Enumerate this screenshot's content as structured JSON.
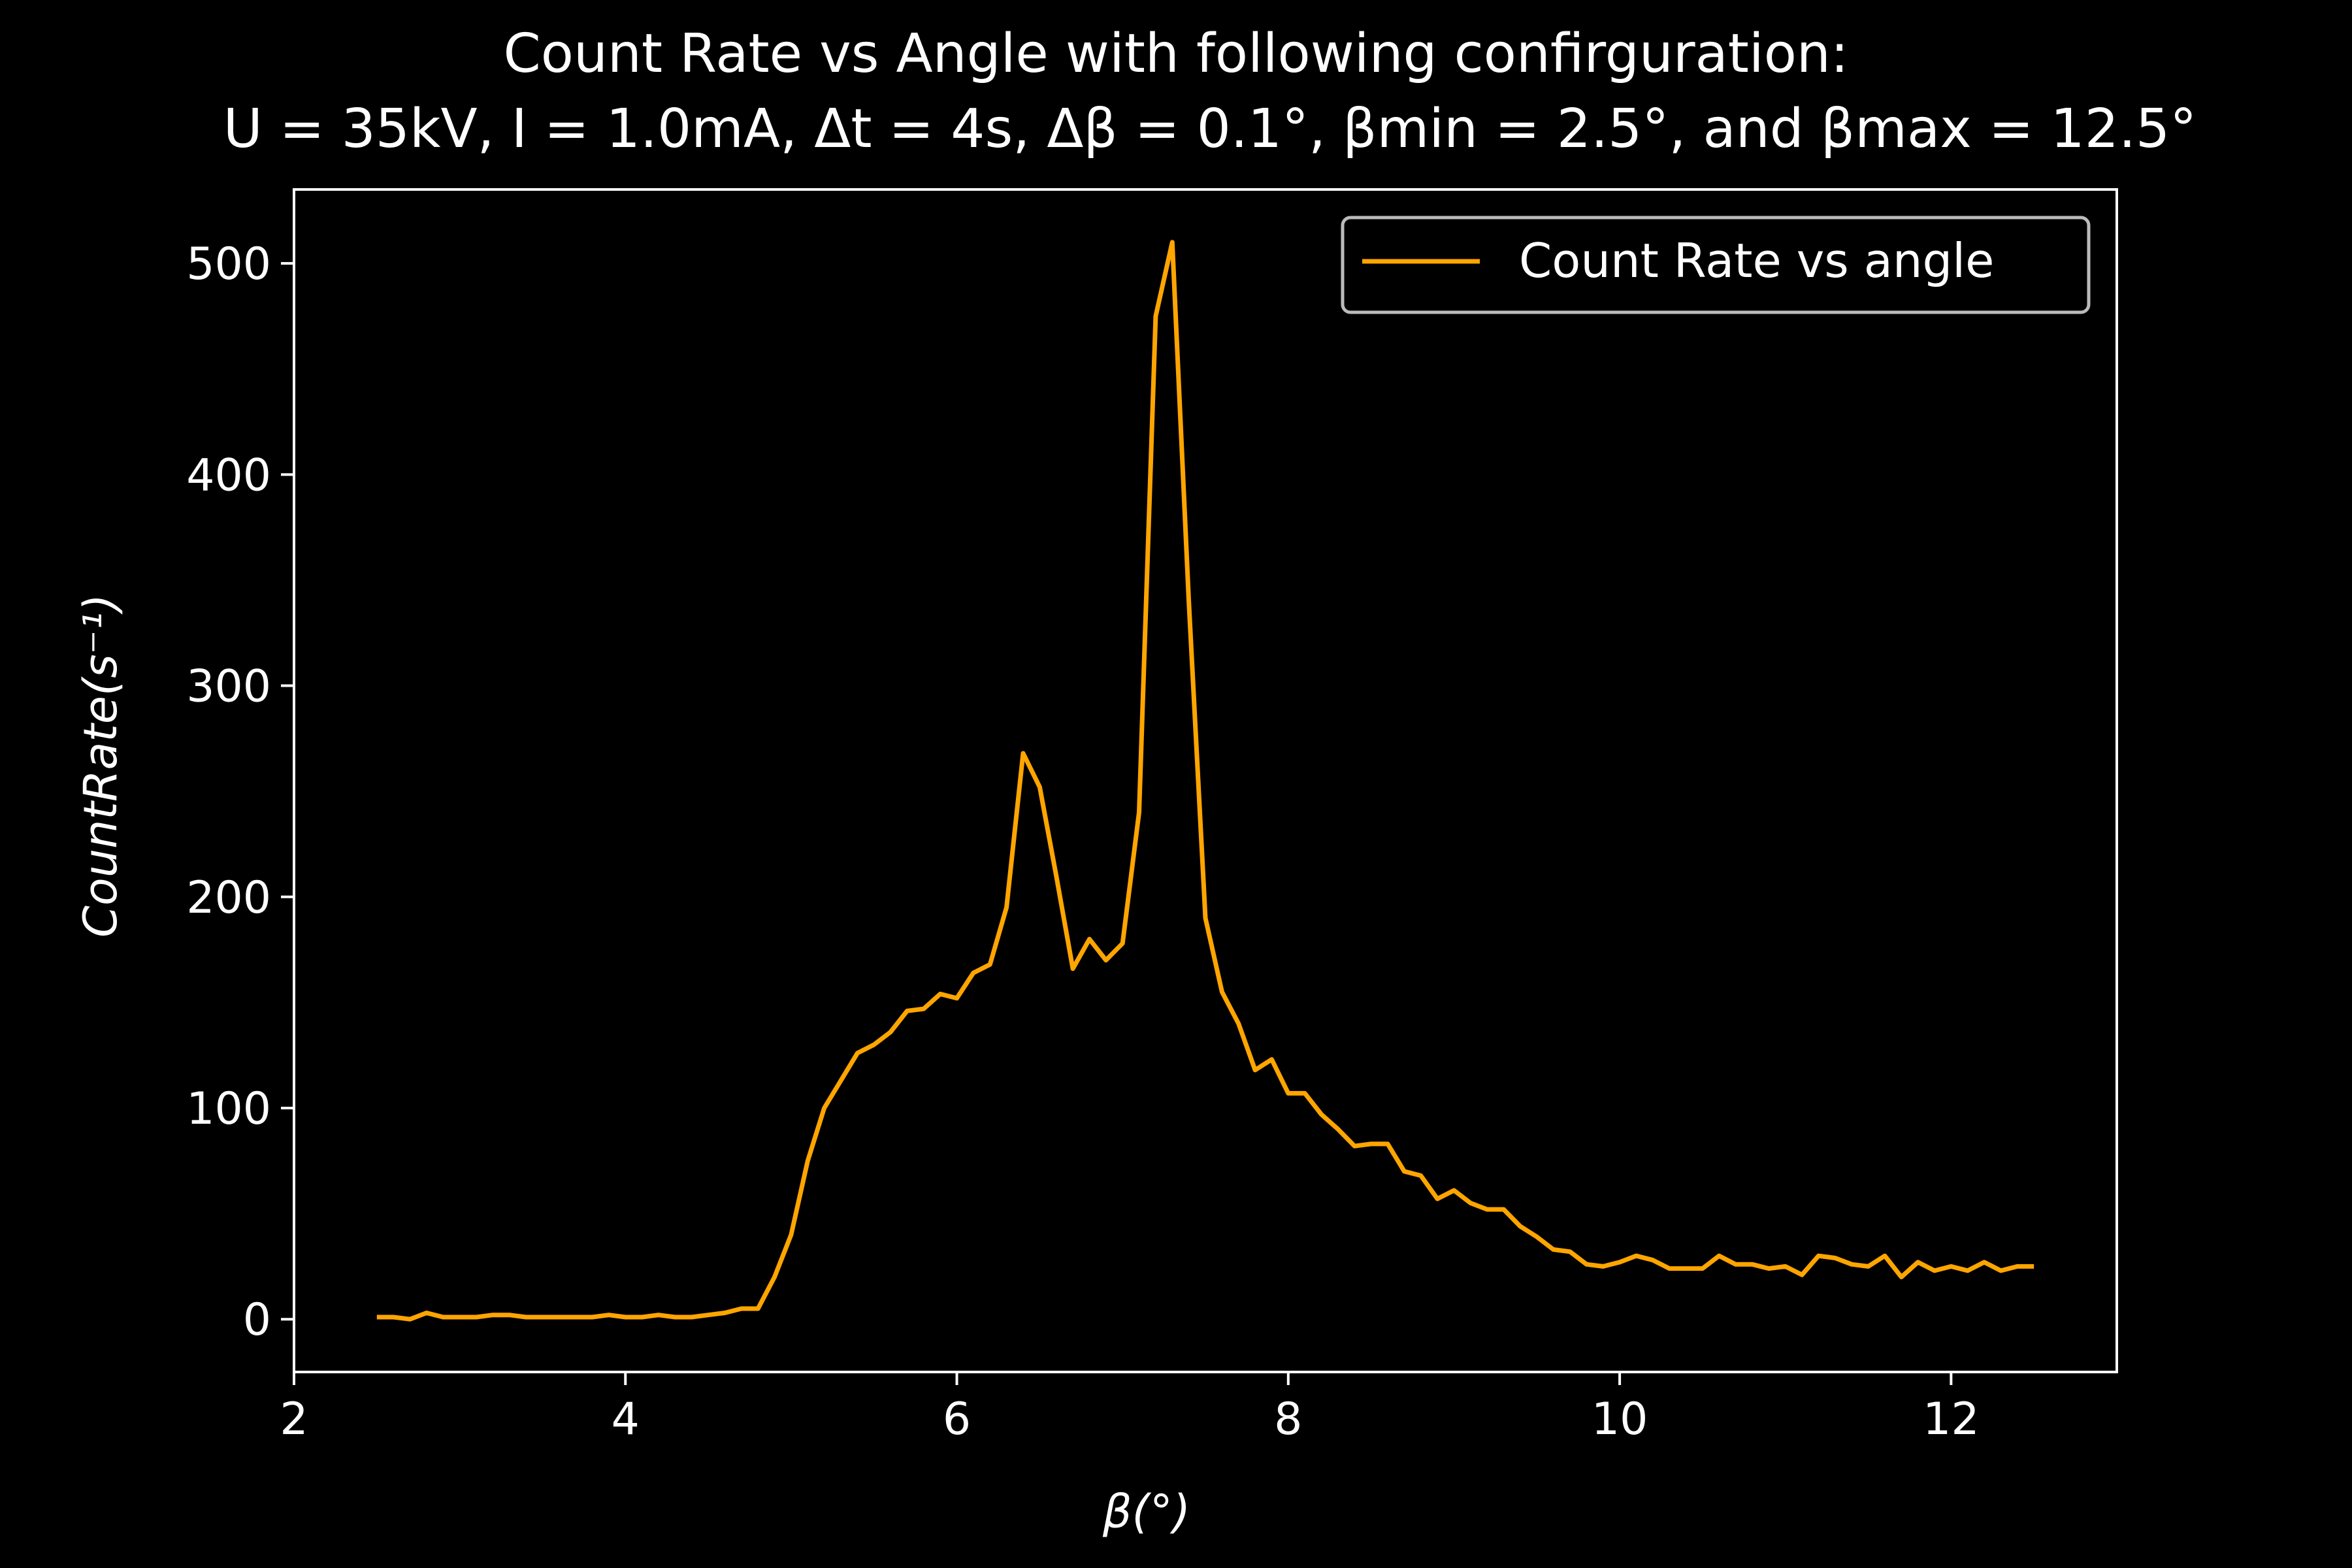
{
  "chart_data": {
    "type": "line",
    "title_line1": "Count Rate vs Angle with following confirguration:",
    "title_line2": "U = 35kV, I = 1.0mA, Δt = 4s, Δβ = 0.1°, βmin = 2.5°,  and βmax = 12.5°",
    "xlabel": "β(°)",
    "ylabel": "CountRate(s⁻¹)",
    "xlim": [
      2,
      13
    ],
    "ylim": [
      -25,
      535
    ],
    "xticks": [
      2,
      4,
      6,
      8,
      10,
      12
    ],
    "yticks": [
      0,
      100,
      200,
      300,
      400,
      500
    ],
    "grid": false,
    "legend_position": "top-right",
    "colors": {
      "background": "#000000",
      "axes": "#ffffff",
      "line": "#ffa500"
    },
    "series": [
      {
        "name": "Count Rate vs angle",
        "x": [
          2.5,
          2.6,
          2.7,
          2.8,
          2.9,
          3.0,
          3.1,
          3.2,
          3.3,
          3.4,
          3.5,
          3.6,
          3.7,
          3.8,
          3.9,
          4.0,
          4.1,
          4.2,
          4.3,
          4.4,
          4.5,
          4.6,
          4.7,
          4.8,
          4.9,
          5.0,
          5.1,
          5.2,
          5.3,
          5.4,
          5.5,
          5.6,
          5.7,
          5.8,
          5.9,
          6.0,
          6.1,
          6.2,
          6.3,
          6.4,
          6.5,
          6.6,
          6.7,
          6.8,
          6.9,
          7.0,
          7.1,
          7.2,
          7.3,
          7.4,
          7.5,
          7.6,
          7.7,
          7.8,
          7.9,
          8.0,
          8.1,
          8.2,
          8.3,
          8.4,
          8.5,
          8.6,
          8.7,
          8.8,
          8.9,
          9.0,
          9.1,
          9.2,
          9.3,
          9.4,
          9.5,
          9.6,
          9.7,
          9.8,
          9.9,
          10.0,
          10.1,
          10.2,
          10.3,
          10.4,
          10.5,
          10.6,
          10.7,
          10.8,
          10.9,
          11.0,
          11.1,
          11.2,
          11.3,
          11.4,
          11.5,
          11.6,
          11.7,
          11.8,
          11.9,
          12.0,
          12.1,
          12.2,
          12.3,
          12.4,
          12.5
        ],
        "y": [
          1,
          1,
          0,
          3,
          1,
          1,
          1,
          2,
          2,
          1,
          1,
          1,
          1,
          1,
          2,
          1,
          1,
          2,
          1,
          1,
          2,
          3,
          5,
          5,
          20,
          40,
          75,
          100,
          113,
          126,
          130,
          136,
          146,
          147,
          154,
          152,
          164,
          168,
          195,
          268,
          252,
          210,
          166,
          180,
          170,
          178,
          240,
          475,
          510,
          340,
          190,
          155,
          140,
          118,
          123,
          107,
          107,
          97,
          90,
          82,
          83,
          83,
          70,
          68,
          57,
          61,
          55,
          52,
          52,
          44,
          39,
          33,
          32,
          26,
          25,
          27,
          30,
          28,
          24,
          24,
          24,
          30,
          26,
          26,
          24,
          25,
          21,
          30,
          29,
          26,
          25,
          30,
          20,
          27,
          23,
          25,
          23,
          27,
          23,
          25,
          25
        ]
      }
    ]
  }
}
